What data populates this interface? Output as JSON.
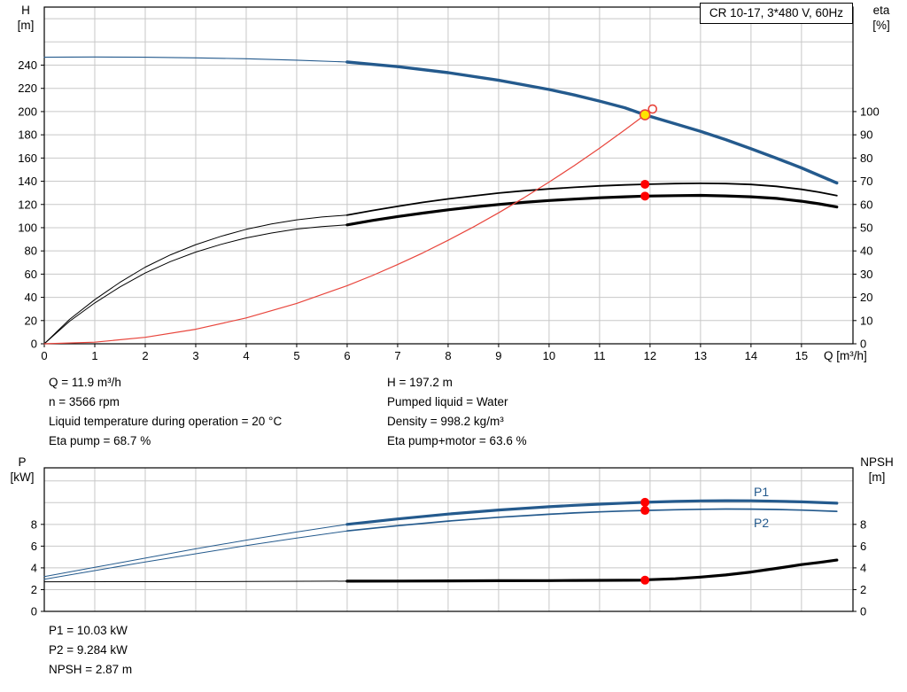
{
  "title_box": {
    "label": "CR 10-17, 3*480 V, 60Hz"
  },
  "colors": {
    "curve_blue": "#245a8d",
    "curve_black": "#000000",
    "curve_red": "#e8453c",
    "marker_red": "#ff0000",
    "marker_yellow": "#ffe400",
    "grid": "#c8c8c8",
    "frame": "#000000"
  },
  "info_top": {
    "left": [
      "Q = 11.9 m³/h",
      "n = 3566 rpm",
      "Liquid temperature during operation = 20 °C",
      "Eta pump = 68.7 %"
    ],
    "right": [
      "H = 197.2 m",
      "Pumped liquid = Water",
      "Density = 998.2 kg/m³",
      "Eta pump+motor = 63.6 %"
    ]
  },
  "info_bottom": [
    "P1 = 10.03 kW",
    "P2 = 9.284 kW",
    "NPSH = 2.87 m"
  ],
  "chart_data": [
    {
      "type": "line",
      "title": "CR 10-17, 3*480 V, 60Hz",
      "x_axis": {
        "label": "Q [m³/h]",
        "min": 0,
        "max": 16.02,
        "ticks": [
          0,
          1,
          2,
          3,
          4,
          5,
          6,
          7,
          8,
          9,
          10,
          11,
          12,
          13,
          14,
          15
        ],
        "labels_visible": true
      },
      "y_left": {
        "label": "H [m]",
        "label_lines": [
          "H",
          "[m]"
        ],
        "min": 0,
        "max": 290,
        "ticks": [
          0,
          20,
          40,
          60,
          80,
          100,
          120,
          140,
          160,
          180,
          200,
          220,
          240
        ],
        "grid": [
          20,
          40,
          60,
          80,
          100,
          120,
          140,
          160,
          180,
          200,
          220,
          240,
          260,
          280
        ]
      },
      "y_right": {
        "label": "eta [%]",
        "label_lines": [
          "eta",
          "[%]"
        ],
        "min": 0,
        "max": 145,
        "ticks": [
          0,
          10,
          20,
          30,
          40,
          50,
          60,
          70,
          80,
          90,
          100
        ]
      },
      "series": [
        {
          "name": "head-curve-low",
          "axis": "left",
          "color": "#245a8d",
          "width": 1.1,
          "points": [
            [
              0,
              246.8
            ],
            [
              1,
              247.0
            ],
            [
              2,
              246.8
            ],
            [
              3,
              246.3
            ],
            [
              4,
              245.5
            ],
            [
              5,
              244.3
            ],
            [
              6,
              242.7
            ]
          ]
        },
        {
          "name": "head-curve-main",
          "axis": "left",
          "color": "#245a8d",
          "width": 3.4,
          "points": [
            [
              6,
              242.7
            ],
            [
              7,
              238.7
            ],
            [
              8,
              233.5
            ],
            [
              9,
              227.0
            ],
            [
              10,
              219.0
            ],
            [
              10.5,
              214.3
            ],
            [
              11,
              209.0
            ],
            [
              11.5,
              203.3
            ],
            [
              11.9,
              197.2
            ],
            [
              12.5,
              189.5
            ],
            [
              13,
              183.0
            ],
            [
              13.5,
              175.8
            ],
            [
              14,
              168.0
            ],
            [
              14.5,
              159.9
            ],
            [
              15,
              151.5
            ],
            [
              15.35,
              145.0
            ],
            [
              15.7,
              138.5
            ]
          ]
        },
        {
          "name": "eta-pump-curve-low",
          "axis": "right",
          "color": "#000000",
          "width": 1.0,
          "points": [
            [
              0,
              0
            ],
            [
              0.5,
              10.5
            ],
            [
              1,
              19.0
            ],
            [
              1.5,
              26.5
            ],
            [
              2,
              33.0
            ],
            [
              2.5,
              38.3
            ],
            [
              3,
              42.7
            ],
            [
              3.5,
              46.3
            ],
            [
              4,
              49.3
            ],
            [
              4.5,
              51.6
            ],
            [
              5,
              53.4
            ],
            [
              5.5,
              54.6
            ],
            [
              6,
              55.4
            ]
          ]
        },
        {
          "name": "eta-pump-curve-main",
          "axis": "right",
          "color": "#000000",
          "width": 1.8,
          "points": [
            [
              6,
              55.4
            ],
            [
              6.5,
              57.4
            ],
            [
              7,
              59.2
            ],
            [
              7.5,
              60.9
            ],
            [
              8,
              62.4
            ],
            [
              8.5,
              63.7
            ],
            [
              9,
              64.9
            ],
            [
              9.5,
              65.9
            ],
            [
              10,
              66.7
            ],
            [
              10.5,
              67.4
            ],
            [
              11,
              68.0
            ],
            [
              11.5,
              68.4
            ],
            [
              11.9,
              68.7
            ],
            [
              12.5,
              69.0
            ],
            [
              13,
              69.1
            ],
            [
              13.5,
              69.0
            ],
            [
              14,
              68.6
            ],
            [
              14.5,
              67.8
            ],
            [
              15,
              66.5
            ],
            [
              15.35,
              65.3
            ],
            [
              15.7,
              63.8
            ]
          ]
        },
        {
          "name": "eta-pump-motor-curve-low",
          "axis": "right",
          "color": "#000000",
          "width": 1.0,
          "points": [
            [
              0,
              0
            ],
            [
              0.5,
              9.7
            ],
            [
              1,
              17.6
            ],
            [
              1.5,
              24.5
            ],
            [
              2,
              30.5
            ],
            [
              2.5,
              35.4
            ],
            [
              3,
              39.5
            ],
            [
              3.5,
              42.8
            ],
            [
              4,
              45.6
            ],
            [
              4.5,
              47.7
            ],
            [
              5,
              49.4
            ],
            [
              5.5,
              50.5
            ],
            [
              6,
              51.2
            ]
          ]
        },
        {
          "name": "eta-pump-motor-curve-main",
          "axis": "right",
          "color": "#000000",
          "width": 3.2,
          "points": [
            [
              6,
              51.2
            ],
            [
              6.5,
              53.1
            ],
            [
              7,
              54.8
            ],
            [
              7.5,
              56.3
            ],
            [
              8,
              57.7
            ],
            [
              8.5,
              58.9
            ],
            [
              9,
              60.0
            ],
            [
              9.5,
              60.9
            ],
            [
              10,
              61.7
            ],
            [
              10.5,
              62.3
            ],
            [
              11,
              62.9
            ],
            [
              11.5,
              63.3
            ],
            [
              11.9,
              63.6
            ],
            [
              12.5,
              63.8
            ],
            [
              13,
              63.9
            ],
            [
              13.5,
              63.7
            ],
            [
              14,
              63.3
            ],
            [
              14.5,
              62.6
            ],
            [
              15,
              61.4
            ],
            [
              15.35,
              60.3
            ],
            [
              15.7,
              58.9
            ]
          ]
        },
        {
          "name": "system-curve",
          "axis": "left",
          "color": "#e8453c",
          "width": 1.2,
          "points": [
            [
              0,
              0
            ],
            [
              1,
              1.4
            ],
            [
              2,
              5.6
            ],
            [
              3,
              12.5
            ],
            [
              4,
              22.3
            ],
            [
              5,
              34.8
            ],
            [
              6,
              50.1
            ],
            [
              6.5,
              58.8
            ],
            [
              7,
              68.2
            ],
            [
              7.5,
              78.3
            ],
            [
              8,
              89.1
            ],
            [
              8.5,
              100.6
            ],
            [
              9,
              112.8
            ],
            [
              9.5,
              125.7
            ],
            [
              10,
              139.3
            ],
            [
              10.5,
              153.5
            ],
            [
              11,
              168.5
            ],
            [
              11.5,
              184.2
            ],
            [
              11.9,
              197.2
            ],
            [
              12.05,
              202.2
            ]
          ]
        }
      ],
      "markers": [
        {
          "name": "system-curve-end-circle",
          "x": 12.05,
          "value": 202.2,
          "axis": "left",
          "r": 4.5,
          "fill": "#ffffff",
          "stroke": "#e8453c"
        },
        {
          "name": "duty-point-marker",
          "x": 11.9,
          "value": 197.2,
          "axis": "left",
          "r": 5.5,
          "fill": "#ffe400",
          "stroke": "#e8453c"
        },
        {
          "name": "eta-pump-duty-dot",
          "x": 11.9,
          "value": 68.7,
          "axis": "right",
          "r": 5,
          "fill": "#ff0000"
        },
        {
          "name": "eta-pump-motor-duty-dot",
          "x": 11.9,
          "value": 63.6,
          "axis": "right",
          "r": 5,
          "fill": "#ff0000"
        }
      ]
    },
    {
      "type": "line",
      "title": "Power and NPSH curves",
      "x_axis": {
        "label": "",
        "min": 0,
        "max": 16.02,
        "ticks": [
          0,
          1,
          2,
          3,
          4,
          5,
          6,
          7,
          8,
          9,
          10,
          11,
          12,
          13,
          14,
          15
        ],
        "labels_visible": false
      },
      "y_left": {
        "label": "P [kW]",
        "label_lines": [
          "P",
          "[kW]"
        ],
        "min": 0,
        "max": 13.2,
        "ticks": [
          0,
          2,
          4,
          6,
          8
        ],
        "grid": [
          2,
          4,
          6,
          8,
          10,
          12
        ]
      },
      "y_right": {
        "label": "NPSH [m]",
        "label_lines": [
          "NPSH",
          "[m]"
        ],
        "min": 0,
        "max": 13.2,
        "ticks": [
          0,
          2,
          4,
          6,
          8
        ]
      },
      "series": [
        {
          "name": "p1-curve-low",
          "axis": "left",
          "color": "#245a8d",
          "width": 1.0,
          "points": [
            [
              0,
              3.2
            ],
            [
              1,
              4.05
            ],
            [
              2,
              4.9
            ],
            [
              3,
              5.75
            ],
            [
              4,
              6.55
            ],
            [
              5,
              7.3
            ],
            [
              6,
              8.0
            ]
          ]
        },
        {
          "name": "p1-curve-main",
          "axis": "left",
          "color": "#245a8d",
          "width": 3.2,
          "points": [
            [
              6,
              8.0
            ],
            [
              7,
              8.5
            ],
            [
              8,
              8.95
            ],
            [
              9,
              9.32
            ],
            [
              10,
              9.62
            ],
            [
              10.5,
              9.75
            ],
            [
              11,
              9.86
            ],
            [
              11.5,
              9.96
            ],
            [
              11.9,
              10.03
            ],
            [
              12.5,
              10.11
            ],
            [
              13,
              10.16
            ],
            [
              13.5,
              10.18
            ],
            [
              14,
              10.17
            ],
            [
              14.5,
              10.13
            ],
            [
              15,
              10.07
            ],
            [
              15.7,
              9.95
            ]
          ]
        },
        {
          "name": "p2-curve-low",
          "axis": "left",
          "color": "#245a8d",
          "width": 1.0,
          "points": [
            [
              0,
              2.95
            ],
            [
              1,
              3.75
            ],
            [
              2,
              4.55
            ],
            [
              3,
              5.3
            ],
            [
              4,
              6.05
            ],
            [
              5,
              6.75
            ],
            [
              6,
              7.4
            ]
          ]
        },
        {
          "name": "p2-curve-main",
          "axis": "left",
          "color": "#245a8d",
          "width": 1.7,
          "points": [
            [
              6,
              7.4
            ],
            [
              7,
              7.88
            ],
            [
              8,
              8.3
            ],
            [
              9,
              8.65
            ],
            [
              10,
              8.93
            ],
            [
              10.5,
              9.05
            ],
            [
              11,
              9.15
            ],
            [
              11.5,
              9.23
            ],
            [
              11.9,
              9.28
            ],
            [
              12.5,
              9.35
            ],
            [
              13,
              9.39
            ],
            [
              13.5,
              9.41
            ],
            [
              14,
              9.4
            ],
            [
              14.5,
              9.37
            ],
            [
              15,
              9.31
            ],
            [
              15.7,
              9.2
            ]
          ]
        },
        {
          "name": "npsh-curve-low",
          "axis": "right",
          "color": "#000000",
          "width": 1.0,
          "points": [
            [
              0,
              2.72
            ],
            [
              2,
              2.73
            ],
            [
              4,
              2.75
            ],
            [
              6,
              2.78
            ]
          ]
        },
        {
          "name": "npsh-curve-main",
          "axis": "right",
          "color": "#000000",
          "width": 3.2,
          "points": [
            [
              6,
              2.78
            ],
            [
              7,
              2.79
            ],
            [
              8,
              2.8
            ],
            [
              9,
              2.82
            ],
            [
              10,
              2.83
            ],
            [
              10.5,
              2.84
            ],
            [
              11,
              2.85
            ],
            [
              11.5,
              2.86
            ],
            [
              11.9,
              2.87
            ],
            [
              12,
              2.92
            ],
            [
              12.5,
              3.0
            ],
            [
              13,
              3.15
            ],
            [
              13.5,
              3.35
            ],
            [
              14,
              3.62
            ],
            [
              14.5,
              3.95
            ],
            [
              15,
              4.3
            ],
            [
              15.35,
              4.5
            ],
            [
              15.7,
              4.72
            ]
          ]
        }
      ],
      "markers": [
        {
          "name": "p1-duty-dot",
          "x": 11.9,
          "value": 10.03,
          "axis": "left",
          "r": 5,
          "fill": "#ff0000"
        },
        {
          "name": "p2-duty-dot",
          "x": 11.9,
          "value": 9.284,
          "axis": "left",
          "r": 5,
          "fill": "#ff0000"
        },
        {
          "name": "npsh-duty-dot",
          "x": 11.9,
          "value": 2.87,
          "axis": "right",
          "r": 5,
          "fill": "#ff0000"
        }
      ],
      "series_labels": [
        {
          "text": "P1"
        },
        {
          "text": "P2"
        }
      ]
    }
  ]
}
